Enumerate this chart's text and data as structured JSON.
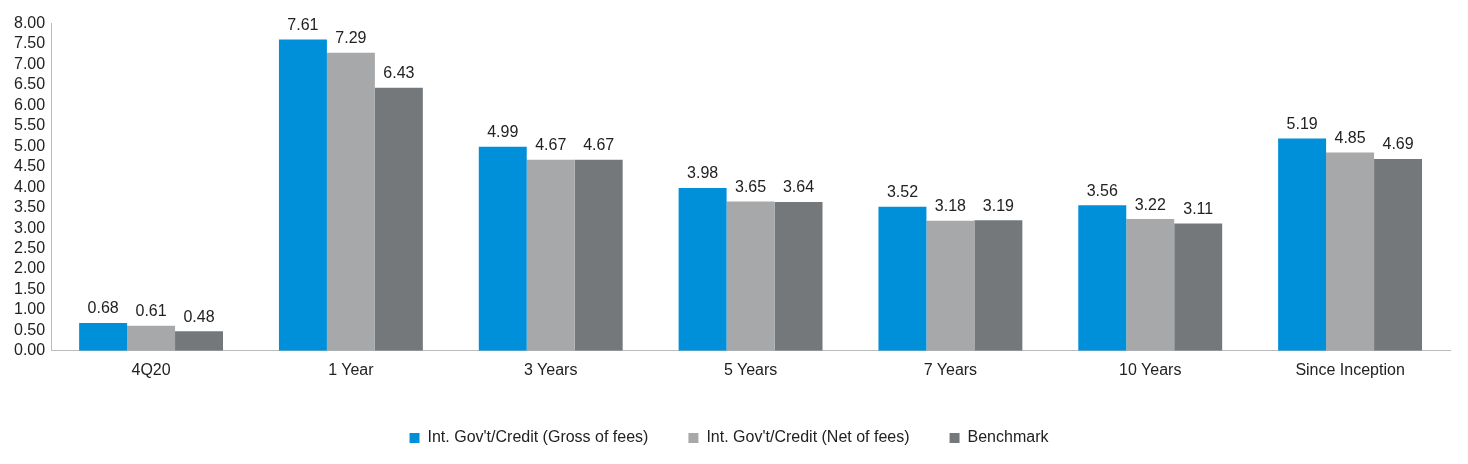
{
  "chart_data": {
    "type": "bar",
    "categories": [
      "4Q20",
      "1 Year",
      "3 Years",
      "5 Years",
      "7 Years",
      "10 Years",
      "Since Inception"
    ],
    "series": [
      {
        "name": "Int. Gov't/Credit (Gross of fees)",
        "color": "#0090da",
        "values": [
          0.68,
          7.61,
          4.99,
          3.98,
          3.52,
          3.56,
          5.19
        ]
      },
      {
        "name": "Int. Gov't/Credit (Net of fees)",
        "color": "#a7a8aa",
        "values": [
          0.61,
          7.29,
          4.67,
          3.65,
          3.18,
          3.22,
          4.85
        ]
      },
      {
        "name": "Benchmark",
        "color": "#75787b",
        "values": [
          0.48,
          6.43,
          4.67,
          3.64,
          3.19,
          3.11,
          4.69
        ]
      }
    ],
    "ylim": [
      0,
      8
    ],
    "yticks": [
      {
        "value": 0,
        "label": "0.00"
      },
      {
        "value": 0.5,
        "label": "0.50"
      },
      {
        "value": 1,
        "label": "1.00"
      },
      {
        "value": 1.5,
        "label": "1.50"
      },
      {
        "value": 2,
        "label": "2.00"
      },
      {
        "value": 2.5,
        "label": "2.50"
      },
      {
        "value": 3,
        "label": "3.00"
      },
      {
        "value": 3.5,
        "label": "3.50"
      },
      {
        "value": 4,
        "label": "4.00"
      },
      {
        "value": 4.5,
        "label": "4.50"
      },
      {
        "value": 5,
        "label": "5.00"
      },
      {
        "value": 5.5,
        "label": "5.50"
      },
      {
        "value": 6,
        "label": "6.00"
      },
      {
        "value": 6.5,
        "label": "6.50"
      },
      {
        "value": 7,
        "label": "7.00"
      },
      {
        "value": 7.5,
        "label": "7.50"
      },
      {
        "value": 8,
        "label": "8.00"
      }
    ],
    "grid": false,
    "legend": "bottom",
    "data_labels": true
  }
}
